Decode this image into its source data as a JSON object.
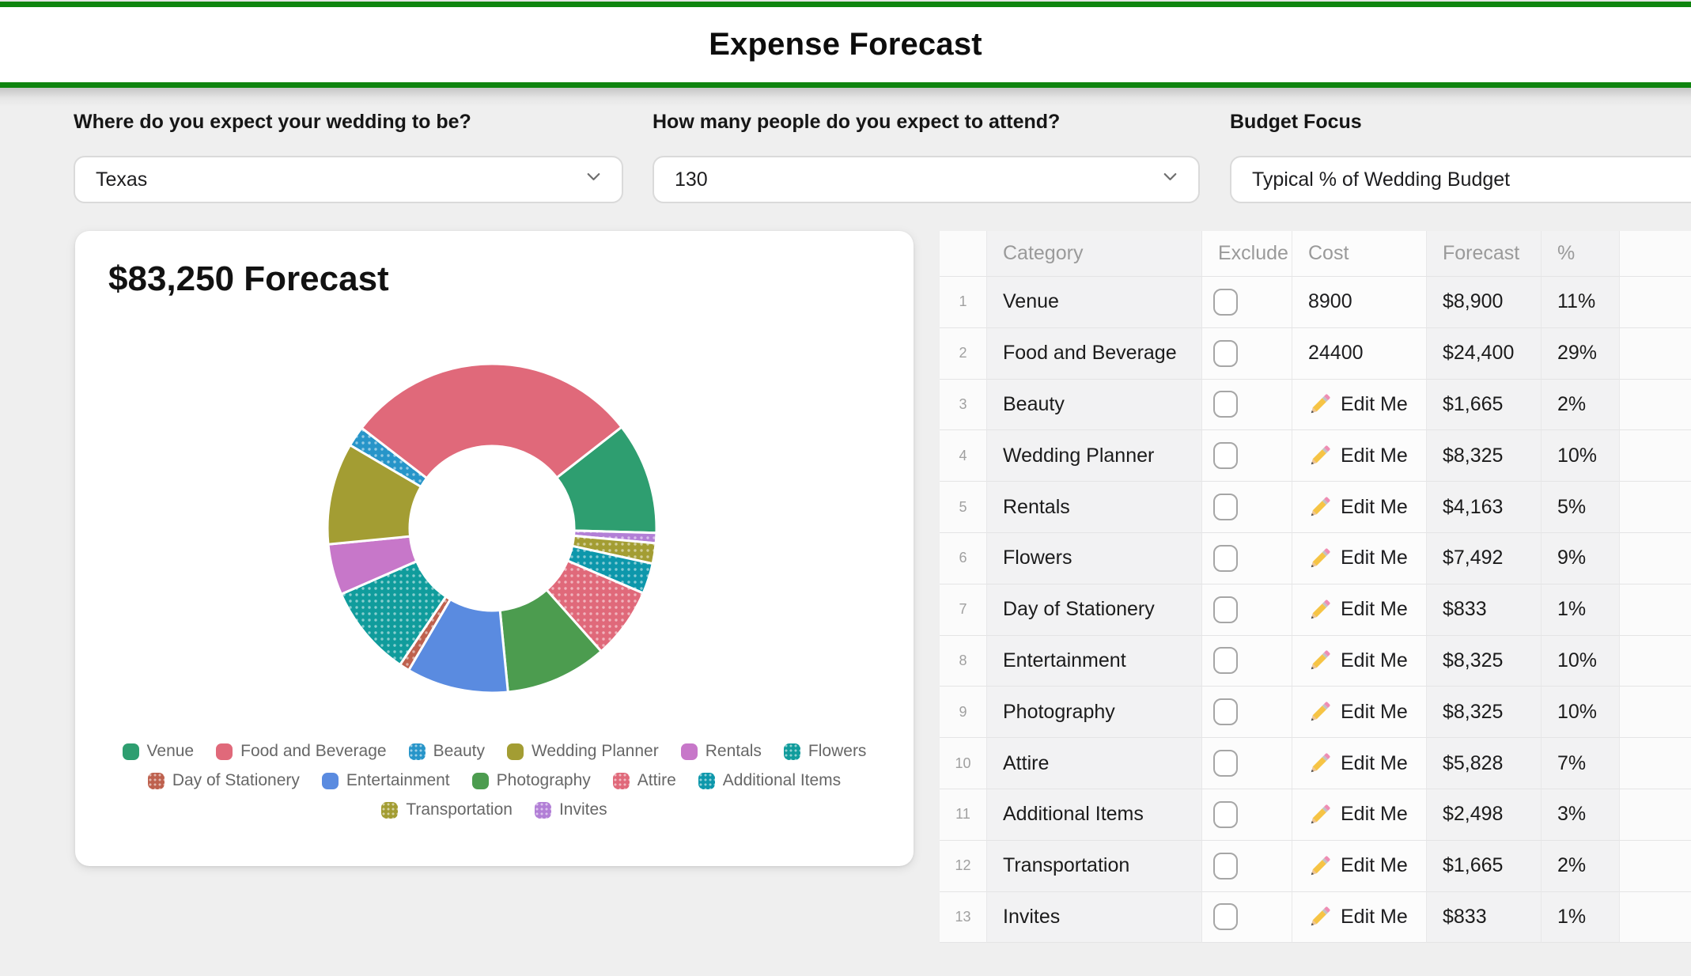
{
  "header": {
    "title": "Expense Forecast"
  },
  "theme": {
    "header_green": "#0f850f",
    "page_bg": "#efefef",
    "card_bg": "#ffffff",
    "readonly_column_bg": "#f2f2f3",
    "grid_line": "#e5e5e6",
    "text_dark": "#1d1d1f",
    "text_gray": "#9a9a9a"
  },
  "icons": {
    "dropdown": "chevron-down-icon",
    "edit": "pencil-icon",
    "exclude": "checkbox-unchecked"
  },
  "controls": [
    {
      "label": "Where do you expect your wedding to be?",
      "value": "Texas",
      "has_chevron": true
    },
    {
      "label": "How many people do you expect to attend?",
      "value": "130",
      "has_chevron": true
    },
    {
      "label": "Budget Focus",
      "value": "Typical % of Wedding Budget",
      "has_chevron": false
    }
  ],
  "chart_data": {
    "type": "pie",
    "donut": true,
    "title": "$83,250 Forecast",
    "total_forecast": 83250,
    "categories": [
      "Venue",
      "Food and Beverage",
      "Beauty",
      "Wedding Planner",
      "Rentals",
      "Flowers",
      "Day of Stationery",
      "Entertainment",
      "Photography",
      "Attire",
      "Additional Items",
      "Transportation",
      "Invites"
    ],
    "values": [
      8900,
      24400,
      1665,
      8325,
      4163,
      7492,
      833,
      8325,
      8325,
      5828,
      2498,
      1665,
      833
    ],
    "percents": [
      11,
      29,
      2,
      10,
      5,
      9,
      1,
      10,
      10,
      7,
      3,
      2,
      1
    ],
    "colors": [
      "#2E9E70",
      "#E0697A",
      "#2795C9",
      "#A39D33",
      "#C777C9",
      "#109C9C",
      "#BE614E",
      "#5A8BE0",
      "#4C9C4F",
      "#E0697A",
      "#0D97AB",
      "#A39D33",
      "#B27FD6"
    ],
    "dotted": [
      false,
      false,
      true,
      false,
      false,
      true,
      true,
      false,
      false,
      true,
      true,
      true,
      true
    ],
    "legend_rows": [
      [
        0,
        1,
        2,
        3,
        4,
        5
      ],
      [
        6,
        7,
        8,
        9,
        10
      ],
      [
        11,
        12
      ]
    ],
    "layout": {
      "legend_position": "bottom",
      "inner_radius_ratio": 0.5,
      "start_angle_cw_from_top": 52,
      "clockwise_order": [
        0,
        12,
        11,
        10,
        9,
        8,
        7,
        6,
        5,
        4,
        3,
        2,
        1
      ]
    }
  },
  "table": {
    "headers": [
      "Category",
      "Exclude",
      "Cost",
      "Forecast",
      "%"
    ],
    "edit_me_label": "Edit Me",
    "rows": [
      {
        "num": 1,
        "category": "Venue",
        "excluded": false,
        "cost": "8900",
        "cost_is_edit": false,
        "forecast": "$8,900",
        "percent": "11%"
      },
      {
        "num": 2,
        "category": "Food and Beverage",
        "excluded": false,
        "cost": "24400",
        "cost_is_edit": false,
        "forecast": "$24,400",
        "percent": "29%"
      },
      {
        "num": 3,
        "category": "Beauty",
        "excluded": false,
        "cost": "",
        "cost_is_edit": true,
        "forecast": "$1,665",
        "percent": "2%"
      },
      {
        "num": 4,
        "category": "Wedding Planner",
        "excluded": false,
        "cost": "",
        "cost_is_edit": true,
        "forecast": "$8,325",
        "percent": "10%"
      },
      {
        "num": 5,
        "category": "Rentals",
        "excluded": false,
        "cost": "",
        "cost_is_edit": true,
        "forecast": "$4,163",
        "percent": "5%"
      },
      {
        "num": 6,
        "category": "Flowers",
        "excluded": false,
        "cost": "",
        "cost_is_edit": true,
        "forecast": "$7,492",
        "percent": "9%"
      },
      {
        "num": 7,
        "category": "Day of Stationery",
        "excluded": false,
        "cost": "",
        "cost_is_edit": true,
        "forecast": "$833",
        "percent": "1%"
      },
      {
        "num": 8,
        "category": "Entertainment",
        "excluded": false,
        "cost": "",
        "cost_is_edit": true,
        "forecast": "$8,325",
        "percent": "10%"
      },
      {
        "num": 9,
        "category": "Photography",
        "excluded": false,
        "cost": "",
        "cost_is_edit": true,
        "forecast": "$8,325",
        "percent": "10%"
      },
      {
        "num": 10,
        "category": "Attire",
        "excluded": false,
        "cost": "",
        "cost_is_edit": true,
        "forecast": "$5,828",
        "percent": "7%"
      },
      {
        "num": 11,
        "category": "Additional Items",
        "excluded": false,
        "cost": "",
        "cost_is_edit": true,
        "forecast": "$2,498",
        "percent": "3%"
      },
      {
        "num": 12,
        "category": "Transportation",
        "excluded": false,
        "cost": "",
        "cost_is_edit": true,
        "forecast": "$1,665",
        "percent": "2%"
      },
      {
        "num": 13,
        "category": "Invites",
        "excluded": false,
        "cost": "",
        "cost_is_edit": true,
        "forecast": "$833",
        "percent": "1%"
      }
    ]
  }
}
